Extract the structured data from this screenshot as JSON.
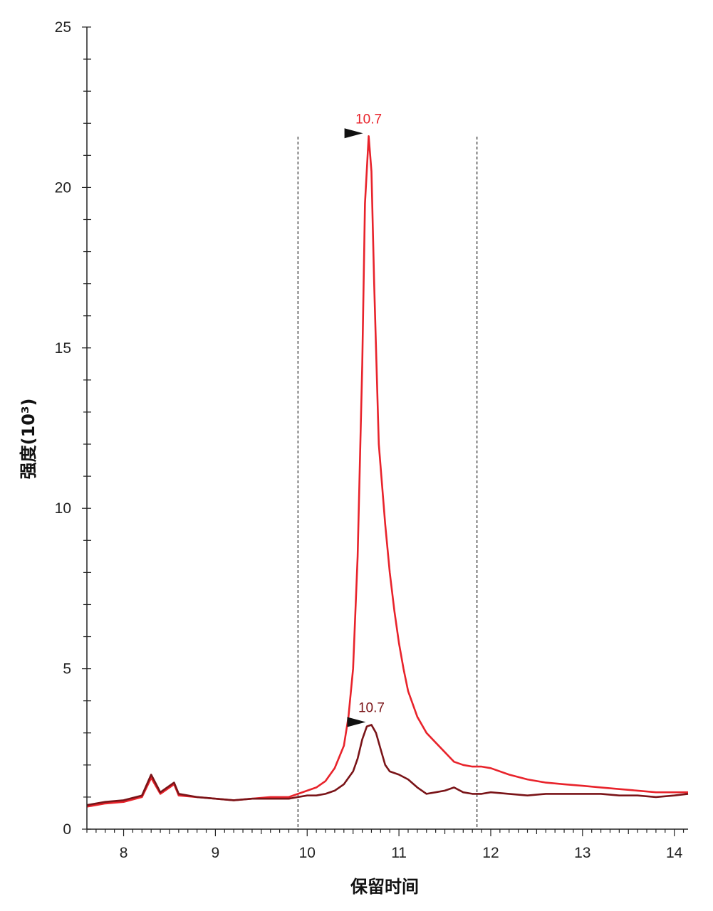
{
  "chart_data": {
    "type": "line",
    "title": "",
    "xlabel": "保留时间",
    "ylabel": "强度(10³)",
    "xlim": [
      7.6,
      14.15
    ],
    "ylim": [
      0,
      25
    ],
    "x_ticks": [
      8,
      9,
      10,
      11,
      12,
      13,
      14
    ],
    "y_ticks": [
      0,
      5,
      10,
      15,
      20,
      25
    ],
    "grid": false,
    "legend": "none",
    "integration_window": [
      9.9,
      11.85
    ],
    "series": [
      {
        "color": "#e8232b",
        "x": [
          7.6,
          7.8,
          8.0,
          8.2,
          8.3,
          8.4,
          8.5,
          8.55,
          8.6,
          8.8,
          9.0,
          9.2,
          9.4,
          9.6,
          9.8,
          9.9,
          10.0,
          10.1,
          10.2,
          10.3,
          10.4,
          10.45,
          10.5,
          10.55,
          10.6,
          10.63,
          10.67,
          10.7,
          10.73,
          10.78,
          10.85,
          10.9,
          10.95,
          11.0,
          11.05,
          11.1,
          11.2,
          11.3,
          11.4,
          11.5,
          11.6,
          11.7,
          11.8,
          11.9,
          12.0,
          12.2,
          12.4,
          12.6,
          12.8,
          13.0,
          13.2,
          13.4,
          13.6,
          13.8,
          14.0,
          14.15
        ],
        "y": [
          0.7,
          0.8,
          0.85,
          1.0,
          1.6,
          1.1,
          1.3,
          1.4,
          1.05,
          1.0,
          0.95,
          0.9,
          0.95,
          1.0,
          1.0,
          1.1,
          1.2,
          1.3,
          1.5,
          1.9,
          2.6,
          3.5,
          5.0,
          8.5,
          14.5,
          19.5,
          21.6,
          20.5,
          17.0,
          12.0,
          9.5,
          8.0,
          6.8,
          5.8,
          5.0,
          4.3,
          3.5,
          3.0,
          2.7,
          2.4,
          2.1,
          2.0,
          1.95,
          1.95,
          1.9,
          1.7,
          1.55,
          1.45,
          1.4,
          1.35,
          1.3,
          1.25,
          1.2,
          1.15,
          1.15,
          1.15
        ],
        "peak": {
          "x": 10.67,
          "y": 21.6,
          "label": "10.7"
        }
      },
      {
        "color": "#7a1418",
        "x": [
          7.6,
          7.8,
          8.0,
          8.2,
          8.3,
          8.4,
          8.5,
          8.55,
          8.6,
          8.8,
          9.0,
          9.2,
          9.4,
          9.6,
          9.8,
          9.9,
          10.0,
          10.1,
          10.2,
          10.3,
          10.4,
          10.45,
          10.5,
          10.55,
          10.6,
          10.65,
          10.7,
          10.75,
          10.8,
          10.85,
          10.9,
          11.0,
          11.1,
          11.2,
          11.3,
          11.4,
          11.5,
          11.6,
          11.7,
          11.8,
          11.9,
          12.0,
          12.2,
          12.4,
          12.6,
          12.8,
          13.0,
          13.2,
          13.4,
          13.6,
          13.8,
          14.0,
          14.15
        ],
        "y": [
          0.75,
          0.85,
          0.9,
          1.05,
          1.7,
          1.15,
          1.35,
          1.45,
          1.1,
          1.0,
          0.95,
          0.9,
          0.95,
          0.95,
          0.95,
          1.0,
          1.05,
          1.05,
          1.1,
          1.2,
          1.4,
          1.6,
          1.8,
          2.2,
          2.8,
          3.2,
          3.25,
          3.0,
          2.5,
          2.0,
          1.8,
          1.7,
          1.55,
          1.3,
          1.1,
          1.15,
          1.2,
          1.3,
          1.15,
          1.1,
          1.1,
          1.15,
          1.1,
          1.05,
          1.1,
          1.1,
          1.1,
          1.1,
          1.05,
          1.05,
          1.0,
          1.05,
          1.1
        ],
        "peak": {
          "x": 10.7,
          "y": 3.25,
          "label": "10.7"
        }
      }
    ]
  }
}
